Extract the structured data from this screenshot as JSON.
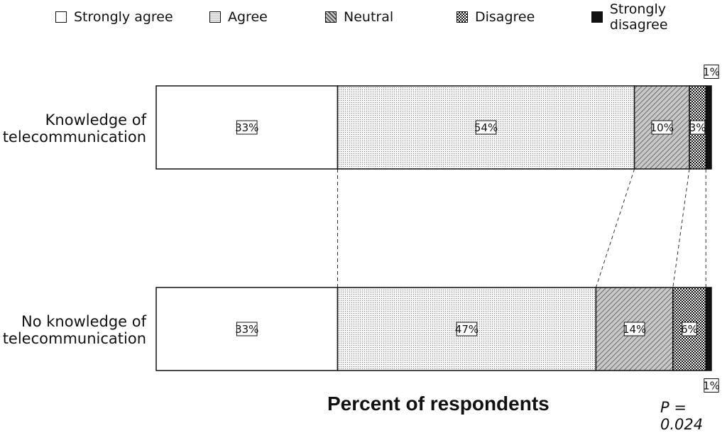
{
  "chart_data": {
    "type": "bar",
    "orientation": "horizontal",
    "stacked": "percent",
    "categories": [
      "Knowledge of\ntelecommunication",
      "No knowledge of\ntelecommunication"
    ],
    "series": [
      {
        "name": "Strongly agree",
        "values": [
          33,
          33
        ],
        "pattern": "none"
      },
      {
        "name": "Agree",
        "values": [
          54,
          47
        ],
        "pattern": "dots"
      },
      {
        "name": "Neutral",
        "values": [
          10,
          14
        ],
        "pattern": "diagonal"
      },
      {
        "name": "Disagree",
        "values": [
          3,
          6
        ],
        "pattern": "checker"
      },
      {
        "name": "Strongly disagree",
        "values": [
          1,
          1
        ],
        "pattern": "solid"
      }
    ],
    "data_labels": [
      [
        "33%",
        "54%",
        "10%",
        "3%",
        "1%"
      ],
      [
        "33%",
        "47%",
        "14%",
        "6%",
        "1%"
      ]
    ],
    "xlabel": "Percent of respondents",
    "annotation": "P = 0.024",
    "legend_position": "top",
    "grid": false,
    "connector_lines": true
  }
}
